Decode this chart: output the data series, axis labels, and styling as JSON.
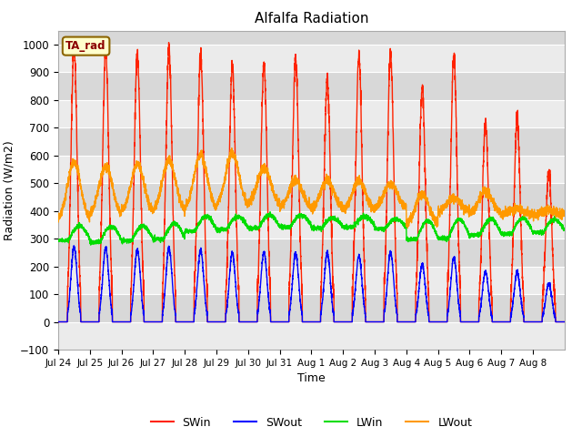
{
  "title": "Alfalfa Radiation",
  "xlabel": "Time",
  "ylabel": "Radiation (W/m2)",
  "ylim": [
    -100,
    1050
  ],
  "background_color": "#d8d8d8",
  "figure_color": "#ffffff",
  "grid_color": "#ffffff",
  "annotation_text": "TA_rad",
  "annotation_facecolor": "#ffffcc",
  "annotation_edgecolor": "#8b6400",
  "series": {
    "SWin": {
      "color": "#ff2200",
      "linewidth": 1.0
    },
    "SWout": {
      "color": "#0000ff",
      "linewidth": 1.0
    },
    "LWin": {
      "color": "#00dd00",
      "linewidth": 1.0
    },
    "LWout": {
      "color": "#ff9900",
      "linewidth": 1.0
    }
  },
  "xtick_labels": [
    "Jul 24",
    "Jul 25",
    "Jul 26",
    "Jul 27",
    "Jul 28",
    "Jul 29",
    "Jul 30",
    "Jul 31",
    "Aug 1",
    "Aug 2",
    "Aug 3",
    "Aug 4",
    "Aug 5",
    "Aug 6",
    "Aug 7",
    "Aug 8"
  ],
  "days": 16,
  "SWin_peaks": [
    990,
    975,
    965,
    980,
    960,
    920,
    930,
    950,
    870,
    960,
    970,
    840,
    960,
    720,
    730,
    540
  ],
  "SWout_peaks": [
    270,
    265,
    260,
    265,
    258,
    248,
    252,
    248,
    250,
    238,
    252,
    208,
    232,
    182,
    178,
    138
  ],
  "LWin_base": [
    298,
    292,
    298,
    303,
    333,
    338,
    343,
    347,
    342,
    347,
    340,
    302,
    307,
    318,
    322,
    327
  ],
  "LWin_day_add": [
    48,
    52,
    47,
    52,
    47,
    42,
    42,
    37,
    32,
    32,
    30,
    62,
    62,
    52,
    52,
    42
  ],
  "LWout_base": [
    358,
    378,
    388,
    393,
    400,
    412,
    418,
    408,
    402,
    397,
    408,
    348,
    397,
    387,
    387,
    387
  ],
  "LWout_peak": [
    578,
    562,
    568,
    582,
    603,
    608,
    558,
    512,
    512,
    508,
    498,
    462,
    448,
    472,
    408,
    402
  ],
  "legend_entries": [
    "SWin",
    "SWout",
    "LWin",
    "LWout"
  ]
}
